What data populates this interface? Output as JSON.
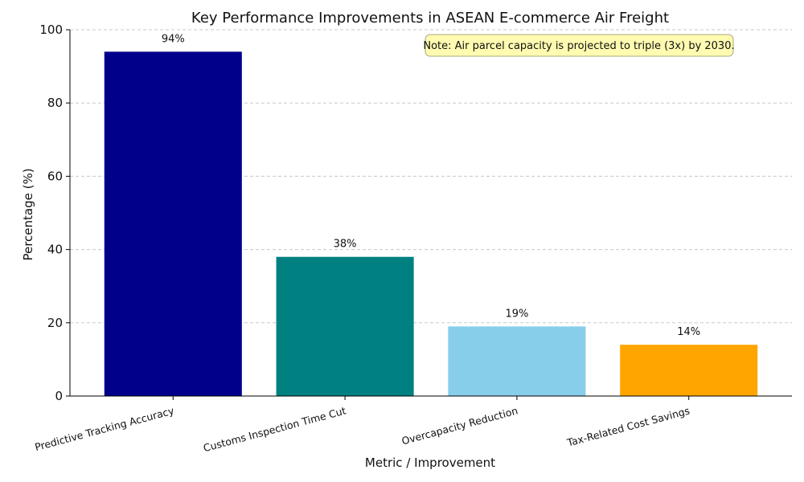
{
  "chart_data": {
    "type": "bar",
    "title": "Key Performance Improvements in ASEAN E-commerce Air Freight",
    "xlabel": "Metric / Improvement",
    "ylabel": "Percentage (%)",
    "ylim": [
      0,
      100
    ],
    "yticks": [
      0,
      20,
      40,
      60,
      80,
      100
    ],
    "grid": "y-dashed",
    "categories": [
      "Predictive Tracking Accuracy",
      "Customs Inspection Time Cut",
      "Overcapacity Reduction",
      "Tax-Related Cost Savings"
    ],
    "values": [
      94,
      38,
      19,
      14
    ],
    "data_labels": [
      "94%",
      "38%",
      "19%",
      "14%"
    ],
    "colors": [
      "#00008b",
      "#008080",
      "#87ceeb",
      "#ffa500"
    ],
    "annotation": {
      "text": "Note: Air parcel capacity is projected to triple (3x) by 2030.",
      "placement": "top-right",
      "background": "#fffbb0",
      "border": "#a8a880"
    }
  }
}
